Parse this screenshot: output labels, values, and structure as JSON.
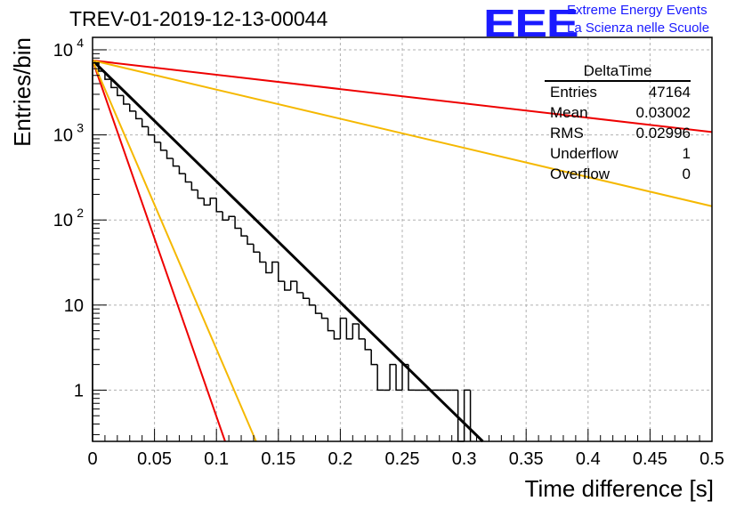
{
  "header": {
    "run_title": "TREV-01-2019-12-13-00044",
    "logo_text": "EEE",
    "logo_line1": "Extreme Energy Events",
    "logo_line2": "La Scienza nelle Scuole"
  },
  "stats_box": {
    "title": "DeltaTime",
    "rows": [
      {
        "label": "Entries",
        "value": "47164"
      },
      {
        "label": "Mean",
        "value": "0.03002"
      },
      {
        "label": "RMS",
        "value": "0.02996"
      },
      {
        "label": "Underflow",
        "value": "1"
      },
      {
        "label": "Overflow",
        "value": "0"
      }
    ]
  },
  "chart_data": {
    "type": "line",
    "title": "",
    "xlabel": "Time difference [s]",
    "ylabel": "Entries/bin",
    "xlim": [
      0,
      0.5
    ],
    "ylim": [
      0.25,
      14000
    ],
    "yscale": "log",
    "grid": true,
    "x_ticks": [
      "0",
      "0.05",
      "0.1",
      "0.15",
      "0.2",
      "0.25",
      "0.3",
      "0.35",
      "0.4",
      "0.45",
      "0.5"
    ],
    "x_tick_values": [
      0,
      0.05,
      0.1,
      0.15,
      0.2,
      0.25,
      0.3,
      0.35,
      0.4,
      0.45,
      0.5
    ],
    "y_ticks": [
      {
        "value": 10000,
        "base": "10",
        "exp": "4"
      },
      {
        "value": 1000,
        "base": "10",
        "exp": "3"
      },
      {
        "value": 100,
        "base": "10",
        "exp": "2"
      },
      {
        "value": 10,
        "base": "10",
        "exp": ""
      },
      {
        "value": 1,
        "base": "1",
        "exp": ""
      }
    ],
    "histogram": {
      "name": "DeltaTime",
      "color": "#000000",
      "bin_width": 0.005,
      "bin_start": 0,
      "values": [
        7000,
        5600,
        4500,
        3600,
        2900,
        2300,
        1900,
        1550,
        1250,
        1000,
        820,
        660,
        530,
        430,
        350,
        280,
        225,
        180,
        150,
        180,
        125,
        100,
        110,
        80,
        65,
        52,
        42,
        32,
        24,
        32,
        19,
        15,
        19,
        14,
        12,
        10,
        8,
        7,
        5,
        4,
        7,
        4,
        6,
        4,
        3,
        2,
        1,
        1,
        2,
        1,
        2,
        1,
        1,
        1,
        1,
        1,
        1,
        1,
        1,
        0,
        1
      ]
    },
    "fits": [
      {
        "color": "#000000",
        "points": [
          [
            0,
            7500
          ],
          [
            0.315,
            0.25
          ]
        ]
      },
      {
        "color": "#ee0000",
        "points": [
          [
            0,
            7500
          ],
          [
            0.5,
            1080
          ]
        ]
      },
      {
        "color": "#f5b800",
        "points": [
          [
            0,
            7500
          ],
          [
            0.5,
            145
          ]
        ]
      },
      {
        "color": "#ee0000",
        "points": [
          [
            0,
            7500
          ],
          [
            0.107,
            0.25
          ]
        ]
      },
      {
        "color": "#f5b800",
        "points": [
          [
            0,
            7500
          ],
          [
            0.132,
            0.25
          ]
        ]
      }
    ]
  }
}
